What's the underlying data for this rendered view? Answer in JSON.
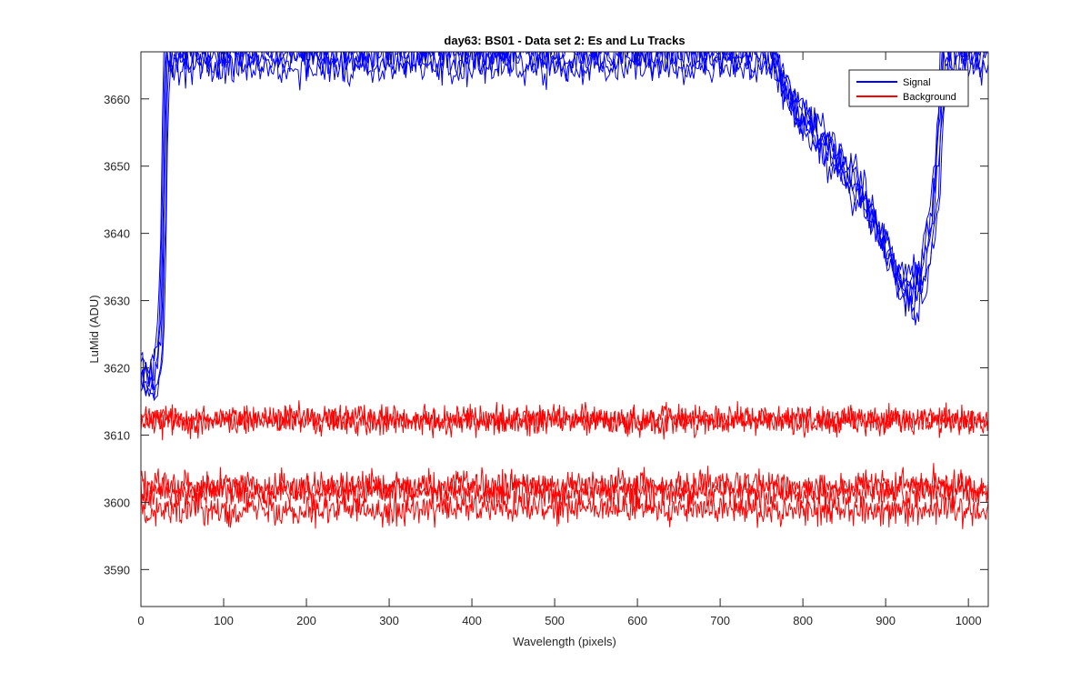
{
  "chart_data": {
    "type": "line",
    "title": "day63: BS01 - Data set 2: Es and Lu Tracks",
    "xlabel": "Wavelength (pixels)",
    "ylabel": "LuMid (ADU)",
    "xlim": [
      0,
      1024
    ],
    "ylim": [
      3584.5,
      3667
    ],
    "xticks": [
      0,
      100,
      200,
      300,
      400,
      500,
      600,
      700,
      800,
      900,
      1000
    ],
    "yticks": [
      3590,
      3600,
      3610,
      3620,
      3630,
      3640,
      3650,
      3660
    ],
    "grid": false,
    "box": true,
    "legend": {
      "location": "top-right",
      "entries": [
        {
          "label": "Signal",
          "color": "#0000ff"
        },
        {
          "label": "Background",
          "color": "#ff0000"
        }
      ]
    },
    "series": [
      {
        "name": "Signal",
        "color": "#0000ff",
        "traces": 6,
        "noise_amplitude": 2.5,
        "points": [
          [
            0,
            3619
          ],
          [
            15,
            3618
          ],
          [
            22,
            3622
          ],
          [
            25,
            3628
          ],
          [
            28,
            3645
          ],
          [
            30,
            3662
          ],
          [
            31,
            3667
          ],
          [
            760,
            3667
          ],
          [
            775,
            3662
          ],
          [
            800,
            3657
          ],
          [
            840,
            3651
          ],
          [
            870,
            3646
          ],
          [
            900,
            3638
          ],
          [
            915,
            3633
          ],
          [
            930,
            3631
          ],
          [
            945,
            3634
          ],
          [
            955,
            3640
          ],
          [
            962,
            3648
          ],
          [
            967,
            3658
          ],
          [
            970,
            3667
          ]
        ]
      },
      {
        "name": "Background",
        "color": "#ff0000",
        "traces": [
          {
            "level": 3612.5,
            "noise_amplitude": 1.8
          },
          {
            "level": 3612.0,
            "noise_amplitude": 1.8
          },
          {
            "level": 3602.5,
            "noise_amplitude": 2.0
          },
          {
            "level": 3601.5,
            "noise_amplitude": 2.0
          },
          {
            "level": 3599.0,
            "noise_amplitude": 2.0
          }
        ]
      }
    ]
  }
}
